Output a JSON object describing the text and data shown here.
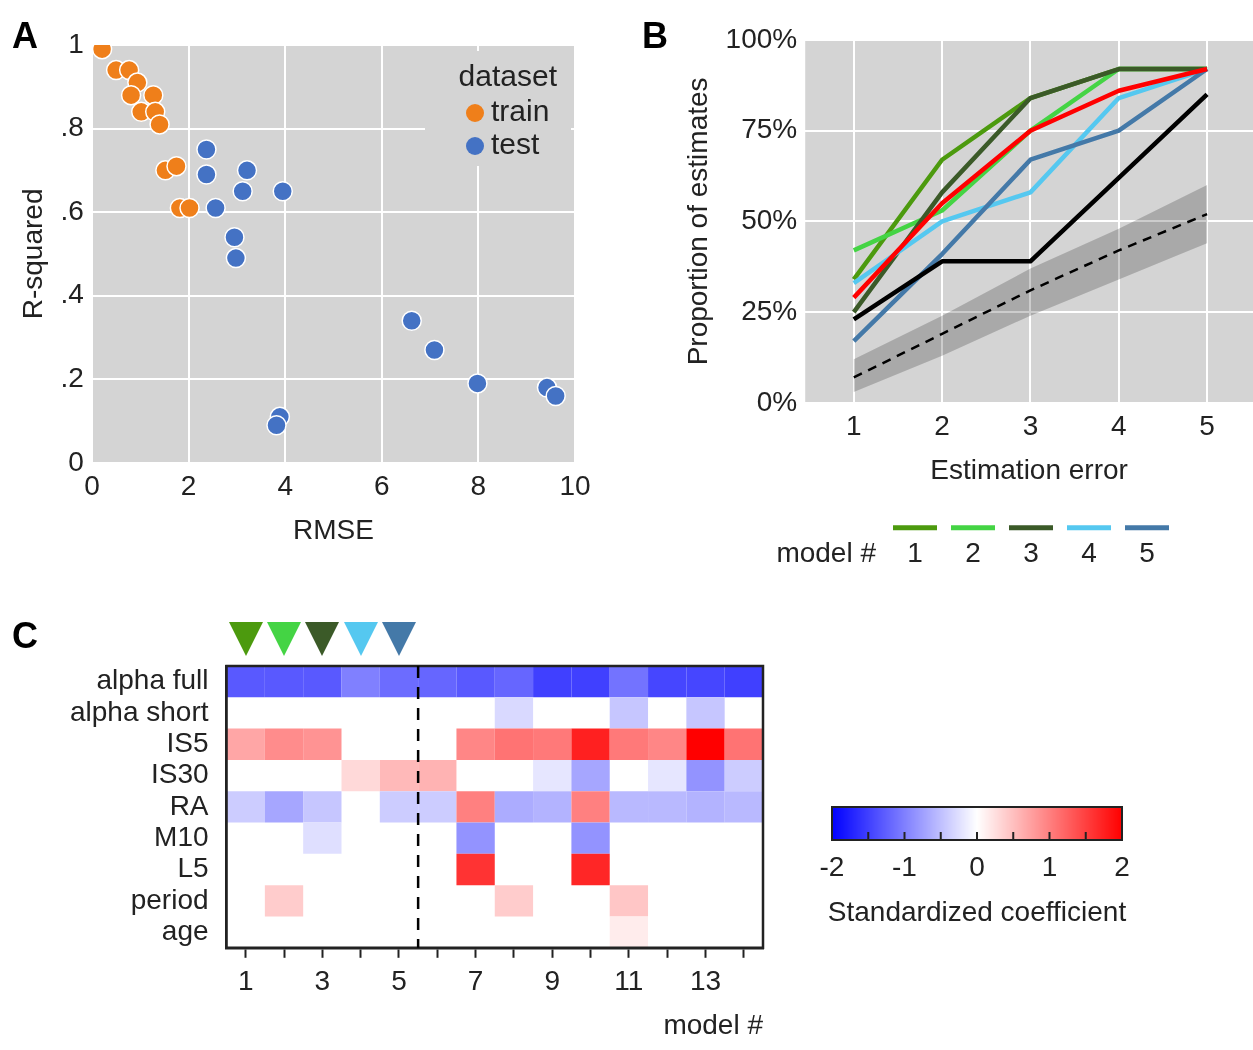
{
  "chart_data": [
    {
      "type": "scatter",
      "title": "A",
      "xlabel": "RMSE",
      "ylabel": "R-squared",
      "legend_title": "dataset",
      "legend": "top right",
      "grid": true,
      "marker": "circle",
      "xlim": [
        0,
        10
      ],
      "ylim": [
        0,
        1
      ],
      "xticks": [
        0,
        2,
        4,
        6,
        8,
        10
      ],
      "yticks": [
        0,
        {
          "value": 0.2,
          "label": ".2"
        },
        {
          "value": 0.4,
          "label": ".4"
        },
        {
          "value": 0.6,
          "label": ".6"
        },
        {
          "value": 0.8,
          "label": ".8"
        },
        1
      ],
      "series": [
        {
          "name": "train",
          "color": "#ef7f1a",
          "x": [
            0.21,
            0.5,
            0.77,
            0.88,
            0.94,
            0.81,
            1.27,
            1.02,
            1.31,
            1.4,
            1.52,
            1.75,
            1.82,
            2.02
          ],
          "values": [
            0.99,
            0.94,
            0.94,
            null,
            0.91,
            0.88,
            0.88,
            0.84,
            0.84,
            0.81,
            0.7,
            0.71,
            0.61,
            0.61
          ]
        },
        {
          "name": "test",
          "color": "#4472c4",
          "x": [
            2.37,
            2.37,
            3.21,
            3.12,
            3.95,
            2.56,
            2.95,
            2.98,
            6.62,
            7.09,
            7.98,
            9.42,
            9.6,
            3.89,
            3.82
          ],
          "values": [
            0.75,
            0.69,
            0.7,
            0.65,
            0.65,
            0.61,
            0.54,
            0.49,
            0.34,
            0.27,
            0.19,
            0.18,
            0.16,
            0.11,
            0.09
          ]
        }
      ]
    },
    {
      "type": "line",
      "title": "B",
      "xlabel": "Estimation error",
      "ylabel": "Proportion of estimates",
      "legend": "bottom",
      "legend_title": "model #",
      "grid": true,
      "x": [
        1,
        2,
        3,
        4,
        5
      ],
      "xlim": [
        0.45,
        5.52
      ],
      "ylim": [
        0,
        100
      ],
      "xticks": [
        1,
        2,
        3,
        4,
        5
      ],
      "yticks": [
        {
          "value": 0,
          "label": "0%"
        },
        {
          "value": 25,
          "label": "25%"
        },
        {
          "value": 50,
          "label": "50%"
        },
        {
          "value": 75,
          "label": "75%"
        },
        {
          "value": 100,
          "label": "100%"
        }
      ],
      "series": [
        {
          "name": "1",
          "color": "#4c9a0e",
          "values": [
            34,
            67,
            84,
            92,
            92
          ]
        },
        {
          "name": "2",
          "color": "#44d444",
          "values": [
            42,
            53,
            75,
            92,
            92
          ]
        },
        {
          "name": "3",
          "color": "#3b5a28",
          "values": [
            25,
            58,
            84,
            92,
            92
          ]
        },
        {
          "name": "4",
          "color": "#55c8f0",
          "values": [
            33,
            50,
            58,
            84,
            92
          ]
        },
        {
          "name": "5",
          "color": "#4479a8",
          "values": [
            17,
            41,
            67,
            75,
            92
          ]
        },
        {
          "color": "#ff0000",
          "values": [
            29,
            55,
            75,
            86,
            92
          ]
        },
        {
          "color": "#000000",
          "values": [
            23,
            39,
            39,
            62,
            85
          ]
        },
        {
          "color": "#000000",
          "line_style": "dashed",
          "values": [
            7,
            19,
            31,
            42,
            52
          ],
          "lower": [
            3,
            13,
            24,
            34,
            44
          ],
          "upper": [
            12,
            24,
            37,
            48,
            60
          ]
        }
      ]
    },
    {
      "type": "heatmap",
      "title": "C",
      "xlabel": "model #",
      "x": [
        1,
        2,
        3,
        4,
        5,
        6,
        7,
        8,
        9,
        10,
        11,
        12,
        13,
        14
      ],
      "xlim": [
        0.5,
        14.5
      ],
      "xticks": [
        1,
        {
          "value": 2,
          "label": null
        },
        3,
        {
          "value": 4,
          "label": null
        },
        5,
        {
          "value": 6,
          "label": null
        },
        7,
        {
          "value": 8,
          "label": null
        },
        9,
        {
          "value": 10,
          "label": null
        },
        11,
        {
          "value": 12,
          "label": null
        },
        13,
        {
          "value": 14,
          "label": null
        }
      ],
      "y_categories": [
        "alpha full",
        "alpha short",
        "IS5",
        "IS30",
        "RA",
        "M10",
        "L5",
        "period",
        "age"
      ],
      "cells": [
        [
          -1.3,
          -1.3,
          -1.3,
          -1.0,
          -1.15,
          -1.2,
          -1.3,
          -1.2,
          -1.5,
          -1.5,
          -1.1,
          -1.45,
          -1.45,
          -1.5
        ],
        [
          null,
          null,
          null,
          null,
          null,
          null,
          null,
          -0.3,
          null,
          null,
          -0.45,
          null,
          -0.45,
          null
        ],
        [
          0.7,
          0.9,
          0.85,
          null,
          null,
          null,
          0.95,
          1.1,
          1.05,
          1.75,
          1.05,
          0.95,
          2.0,
          1.1
        ],
        [
          null,
          null,
          null,
          0.3,
          0.55,
          0.6,
          null,
          null,
          -0.2,
          -0.7,
          null,
          -0.2,
          -0.85,
          -0.4
        ],
        [
          -0.4,
          -0.7,
          -0.45,
          null,
          -0.4,
          -0.4,
          1.0,
          -0.65,
          -0.6,
          1.0,
          -0.55,
          -0.55,
          -0.6,
          -0.55
        ],
        [
          null,
          null,
          -0.25,
          null,
          null,
          null,
          -0.85,
          null,
          null,
          -0.85,
          null,
          null,
          null,
          null
        ],
        [
          null,
          null,
          null,
          null,
          null,
          null,
          1.6,
          null,
          null,
          1.7,
          null,
          null,
          null,
          null
        ],
        [
          null,
          0.4,
          null,
          null,
          null,
          null,
          null,
          0.4,
          null,
          null,
          0.45,
          null,
          null,
          null
        ],
        [
          null,
          null,
          null,
          null,
          null,
          null,
          null,
          null,
          null,
          null,
          0.15,
          null,
          null,
          null
        ]
      ],
      "clim": [
        -2,
        2
      ],
      "cticks": [
        -2,
        {
          "value": -1.5,
          "label": null
        },
        -1,
        {
          "value": -0.5,
          "label": null
        },
        0,
        {
          "value": 0.5,
          "label": null
        },
        1,
        {
          "value": 1.5,
          "label": null
        },
        2
      ],
      "clabel": "Standardized coefficient",
      "ref_lines": [
        {
          "axis": "x",
          "value": 5.5,
          "color": "#000000",
          "line_style": "dashed"
        }
      ]
    }
  ]
}
